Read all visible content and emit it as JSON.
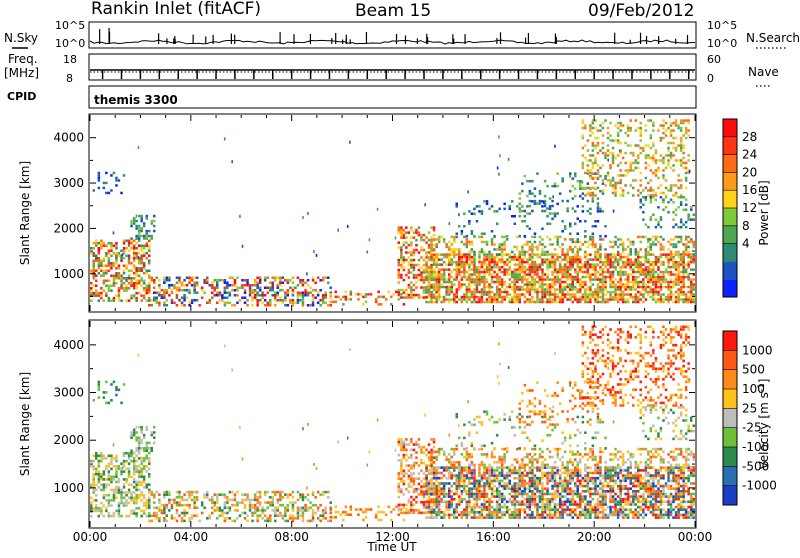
{
  "header": {
    "station": "Rankin Inlet (fitACF)",
    "beam": "Beam 15",
    "date": "09/Feb/2012"
  },
  "strip1": {
    "left_label": "N.Sky",
    "left_ticks": [
      "10^5",
      "10^0"
    ],
    "right_label": "N.Search",
    "right_ticks": [
      "10^5",
      "10^0"
    ]
  },
  "strip2": {
    "left_label_top": "Freq.",
    "left_label_unit": "[MHz]",
    "left_ticks": [
      "18",
      "8"
    ],
    "right_label": "Nave",
    "right_ticks": [
      "60",
      "0"
    ]
  },
  "strip3": {
    "left_label": "CPID",
    "program": "themis 3300"
  },
  "colors": {
    "power": [
      "#0a22ff",
      "#1c55c0",
      "#2e8a70",
      "#4fa652",
      "#82c93a",
      "#ffd319",
      "#ff9a1a",
      "#ff6a12",
      "#ff3316",
      "#ff0a0a"
    ],
    "velocity": [
      "#1a3ec8",
      "#2b6fb2",
      "#2e8a4a",
      "#6dc13a",
      "#bdbdbd",
      "#ffc21a",
      "#ff8a1a",
      "#ff5a14",
      "#ff1a0a"
    ]
  },
  "power_scale": {
    "label": "Power [dB]",
    "ticks": [
      "28",
      "24",
      "20",
      "16",
      "12",
      "8",
      "4"
    ]
  },
  "velocity_scale": {
    "label": "Velocity [m s",
    "label_sup": "-1",
    "label_end": "]",
    "ticks": [
      "1000",
      "500",
      "100",
      "25",
      "-25",
      "-100",
      "-500",
      "-1000"
    ]
  },
  "chart_data": [
    {
      "type": "heatmap",
      "name": "power",
      "ylabel": "Slant Range [km]",
      "yticks": [
        "4000",
        "3000",
        "2000",
        "1000"
      ],
      "ylim": [
        180,
        4500
      ],
      "x_range_hours": [
        0,
        24
      ],
      "xticks": [
        "00:00",
        "04:00",
        "08:00",
        "12:00",
        "16:00",
        "20:00",
        "00:00"
      ]
    },
    {
      "type": "heatmap",
      "name": "velocity",
      "ylabel": "Slant Range [km]",
      "yticks": [
        "4000",
        "3000",
        "2000",
        "1000"
      ],
      "ylim": [
        180,
        4500
      ],
      "x_range_hours": [
        0,
        24
      ],
      "xticks": [
        "00:00",
        "04:00",
        "08:00",
        "12:00",
        "16:00",
        "20:00",
        "00:00"
      ],
      "xlabel": "Time UT"
    }
  ]
}
